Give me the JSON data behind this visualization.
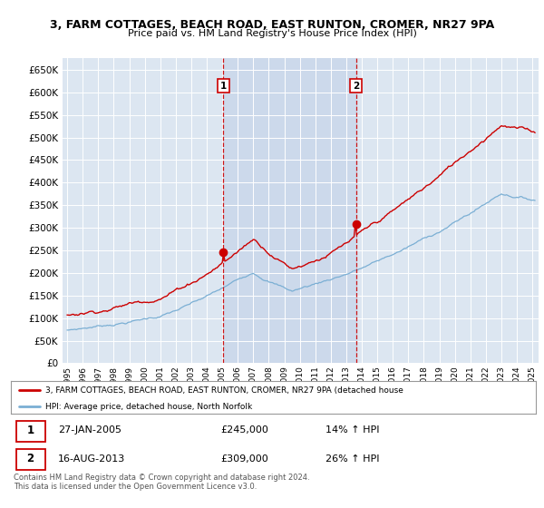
{
  "title": "3, FARM COTTAGES, BEACH ROAD, EAST RUNTON, CROMER, NR27 9PA",
  "subtitle": "Price paid vs. HM Land Registry's House Price Index (HPI)",
  "sale1_price": 245000,
  "sale1_hpi_pct": "14% ↑ HPI",
  "sale1_display": "27-JAN-2005",
  "sale2_price": 309000,
  "sale2_hpi_pct": "26% ↑ HPI",
  "sale2_display": "16-AUG-2013",
  "line_color_hpi": "#7bafd4",
  "line_color_price": "#cc0000",
  "shade_color": "#ccd9eb",
  "plot_bg_color": "#dce6f1",
  "legend_label_price": "3, FARM COTTAGES, BEACH ROAD, EAST RUNTON, CROMER, NR27 9PA (detached house",
  "legend_label_hpi": "HPI: Average price, detached house, North Norfolk",
  "footer": "Contains HM Land Registry data © Crown copyright and database right 2024.\nThis data is licensed under the Open Government Licence v3.0.",
  "ylim": [
    0,
    675000
  ],
  "yticks": [
    0,
    50000,
    100000,
    150000,
    200000,
    250000,
    300000,
    350000,
    400000,
    450000,
    500000,
    550000,
    600000,
    650000
  ],
  "year_start": 1995,
  "year_end": 2025,
  "sale1_yr": 2005.07,
  "sale2_yr": 2013.62
}
